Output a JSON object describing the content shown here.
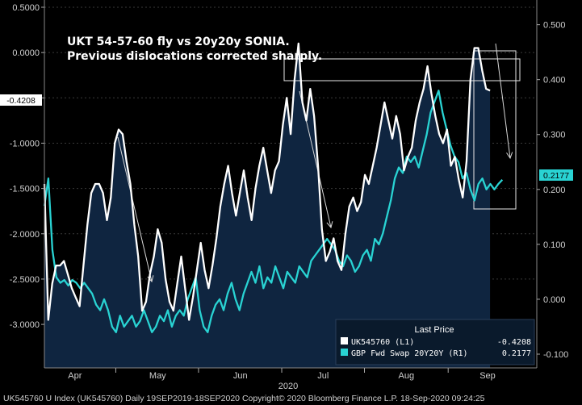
{
  "chart_data": {
    "type": "line",
    "title_lines": [
      "UKT 54-57-60 fly vs 20y20y SONIA.",
      "Previous dislocations corrected sharply."
    ],
    "x_labels": [
      "Apr",
      "May",
      "Jun",
      "Jul",
      "Aug",
      "Sep"
    ],
    "x_year_label": "2020",
    "left_axis": {
      "ticks": [
        "0.5000",
        "0.0000",
        "-0.5000",
        "-1.0000",
        "-1.5000",
        "-2.0000",
        "-2.5000",
        "-3.0000"
      ],
      "range": [
        -3.48,
        0.58
      ]
    },
    "right_axis": {
      "ticks": [
        "0.500",
        "0.400",
        "0.300",
        "0.200",
        "0.100",
        "0.000",
        "-0.100"
      ],
      "range": [
        -0.125,
        0.545
      ]
    },
    "series": [
      {
        "name": "UK545760",
        "axis": "L1",
        "last_value": "-0.4208",
        "color": "#ffffff",
        "values": [
          -1.45,
          -2.95,
          -2.55,
          -2.35,
          -2.35,
          -2.3,
          -2.45,
          -2.6,
          -2.7,
          -2.8,
          -2.35,
          -1.9,
          -1.55,
          -1.45,
          -1.45,
          -1.55,
          -1.85,
          -1.6,
          -1.0,
          -0.85,
          -0.9,
          -1.2,
          -1.45,
          -1.9,
          -2.25,
          -2.85,
          -2.75,
          -2.45,
          -2.25,
          -1.95,
          -2.1,
          -2.5,
          -2.75,
          -2.85,
          -2.55,
          -2.25,
          -2.6,
          -2.95,
          -2.7,
          -2.4,
          -2.1,
          -2.4,
          -2.6,
          -2.35,
          -2.05,
          -1.7,
          -1.45,
          -1.25,
          -1.55,
          -1.8,
          -1.55,
          -1.3,
          -1.6,
          -1.85,
          -1.5,
          -1.25,
          -1.05,
          -1.3,
          -1.55,
          -1.3,
          -1.2,
          -0.8,
          -0.5,
          -0.9,
          -0.3,
          0.1,
          -0.55,
          -0.75,
          -0.4,
          -0.7,
          -1.25,
          -1.95,
          -2.3,
          -2.2,
          -2.05,
          -2.3,
          -2.4,
          -2.0,
          -1.7,
          -1.6,
          -1.75,
          -1.65,
          -1.35,
          -1.45,
          -1.25,
          -1.05,
          -0.8,
          -0.55,
          -0.75,
          -0.95,
          -0.7,
          -0.9,
          -1.3,
          -1.15,
          -1.05,
          -0.75,
          -0.55,
          -0.4,
          -0.15,
          -0.45,
          -0.7,
          -0.9,
          -1.0,
          -0.85,
          -1.25,
          -1.15,
          -1.4,
          -1.6,
          -1.2,
          -0.3,
          0.05,
          0.05,
          -0.2,
          -0.4,
          -0.42
        ],
        "x_start": 0.0,
        "x_end": 0.905
      },
      {
        "name": "GBP Fwd Swap 20Y20Y",
        "axis": "R1",
        "last_value": "0.2177",
        "color": "#29d3d3",
        "values": [
          0.17,
          0.22,
          0.09,
          0.04,
          0.03,
          0.035,
          0.025,
          0.035,
          0.03,
          0.02,
          0.03,
          0.02,
          0.01,
          -0.01,
          -0.02,
          0.0,
          -0.02,
          -0.05,
          -0.06,
          -0.03,
          -0.05,
          -0.04,
          -0.03,
          -0.05,
          -0.04,
          -0.02,
          -0.04,
          -0.06,
          -0.05,
          -0.03,
          -0.04,
          -0.02,
          -0.05,
          -0.03,
          -0.02,
          -0.03,
          0.0,
          0.02,
          0.04,
          -0.02,
          -0.05,
          -0.06,
          -0.03,
          -0.01,
          0.0,
          -0.02,
          0.01,
          0.03,
          0.0,
          -0.02,
          0.01,
          0.03,
          0.05,
          0.03,
          0.06,
          0.02,
          0.04,
          0.03,
          0.06,
          0.04,
          0.02,
          0.05,
          0.04,
          0.03,
          0.06,
          0.05,
          0.04,
          0.07,
          0.08,
          0.09,
          0.1,
          0.11,
          0.1,
          0.09,
          0.07,
          0.06,
          0.08,
          0.07,
          0.05,
          0.06,
          0.08,
          0.09,
          0.07,
          0.11,
          0.1,
          0.12,
          0.15,
          0.18,
          0.22,
          0.24,
          0.23,
          0.26,
          0.25,
          0.26,
          0.24,
          0.27,
          0.3,
          0.34,
          0.36,
          0.38,
          0.34,
          0.31,
          0.28,
          0.26,
          0.25,
          0.22,
          0.23,
          0.2,
          0.18,
          0.21,
          0.22,
          0.2,
          0.21,
          0.2,
          0.21,
          0.2177
        ],
        "x_start": 0.0,
        "x_end": 0.93
      }
    ],
    "legend": {
      "heading": "Last Price",
      "rows": [
        {
          "label": "UK545760  (L1)",
          "value": "-0.4208"
        },
        {
          "label": "GBP Fwd Swap 20Y20Y  (R1)",
          "value": "0.2177"
        }
      ]
    },
    "tags": {
      "left": "-0.4208",
      "right": "0.2177"
    },
    "footer": "UK545760 U Index (UK545760)  Daily 19SEP2019-18SEP2020 Copyright© 2020 Bloomberg Finance L.P. 18-Sep-2020 09:24:25"
  }
}
